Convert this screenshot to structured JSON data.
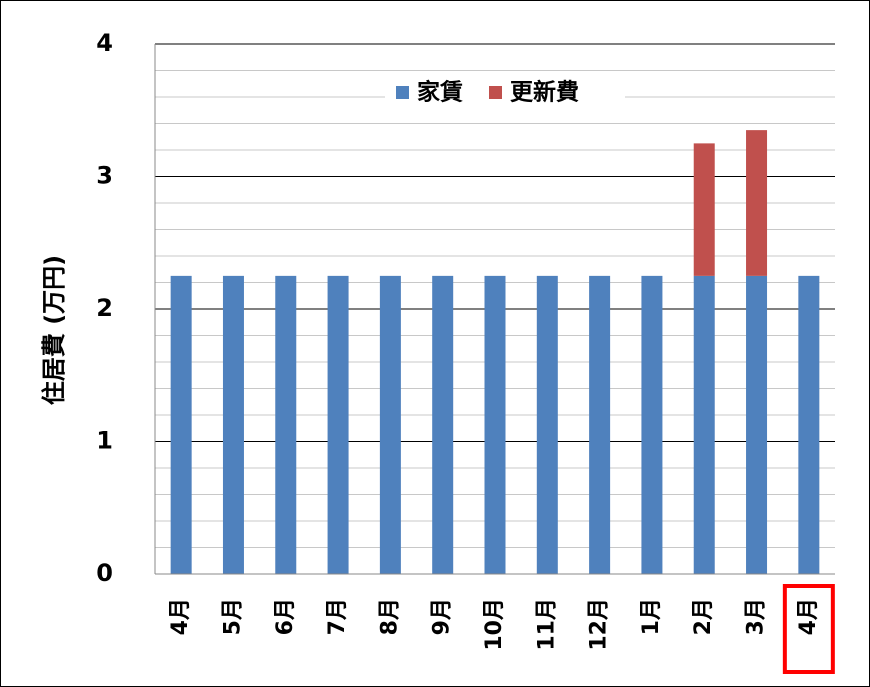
{
  "chart_data": {
    "type": "stacked_bar",
    "y_label": "住居費 (万円)",
    "categories": [
      "4月",
      "5月",
      "6月",
      "7月",
      "8月",
      "9月",
      "10月",
      "11月",
      "12月",
      "1月",
      "2月",
      "3月",
      "4月"
    ],
    "series": [
      {
        "name": "家賃",
        "color": "#4f81bd",
        "values": [
          2.25,
          2.25,
          2.25,
          2.25,
          2.25,
          2.25,
          2.25,
          2.25,
          2.25,
          2.25,
          2.25,
          2.25,
          2.25
        ]
      },
      {
        "name": "更新費",
        "color": "#c0504d",
        "values": [
          0,
          0,
          0,
          0,
          0,
          0,
          0,
          0,
          0,
          0,
          1.0,
          1.1,
          0
        ]
      }
    ],
    "ylim": [
      0,
      4
    ],
    "yticks": [
      0,
      1,
      2,
      3,
      4
    ],
    "minor_yticks": [
      0.2,
      0.4,
      0.6,
      0.8,
      1.2,
      1.4,
      1.6,
      1.8,
      2.2,
      2.4,
      2.6,
      2.8,
      3.2,
      3.4,
      3.6,
      3.8
    ],
    "grid": true,
    "legend": "top",
    "highlight_category": 12,
    "highlight_color": "#ff0000"
  }
}
